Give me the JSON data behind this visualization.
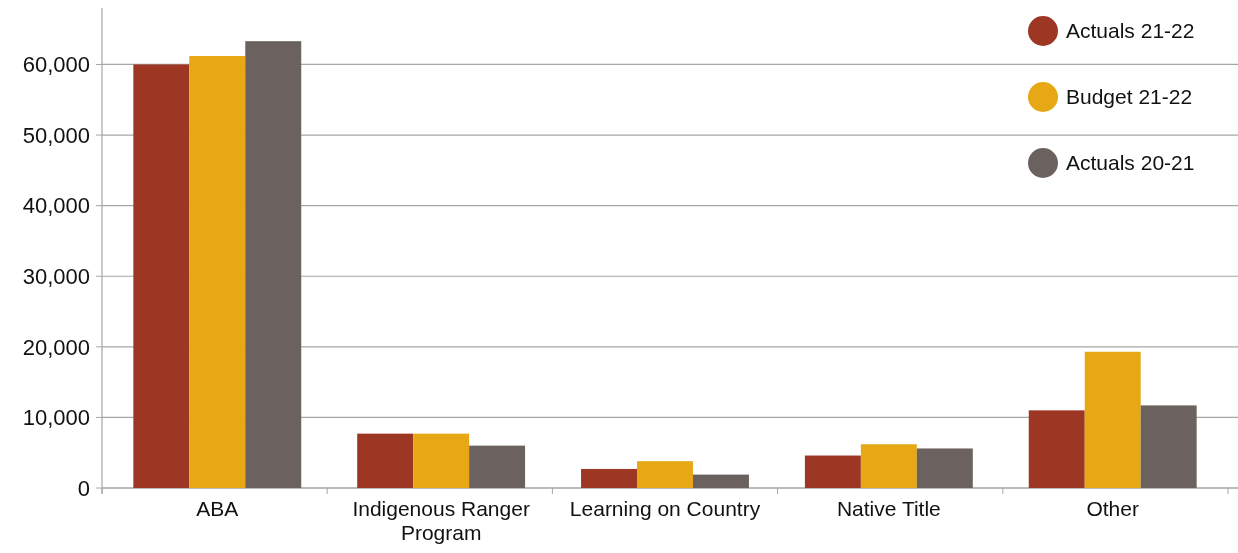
{
  "chart_data": {
    "type": "bar",
    "categories": [
      "ABA",
      "Indigenous Ranger Program",
      "Learning on Country",
      "Native Title",
      "Other"
    ],
    "series": [
      {
        "name": "Actuals 21-22",
        "color": "#9e3624",
        "values": [
          60000,
          7700,
          2700,
          4600,
          11000
        ]
      },
      {
        "name": "Budget 21-22",
        "color": "#e6a815",
        "values": [
          61200,
          7700,
          3800,
          6200,
          19300
        ]
      },
      {
        "name": "Actuals 20-21",
        "color": "#6b625f",
        "values": [
          63300,
          6000,
          1900,
          5600,
          11700
        ]
      }
    ],
    "ylim": [
      0,
      68000
    ],
    "yticks": [
      {
        "value": 0,
        "label": "0"
      },
      {
        "value": 10000,
        "label": "10,000"
      },
      {
        "value": 20000,
        "label": "20,000"
      },
      {
        "value": 30000,
        "label": "30,000"
      },
      {
        "value": 40000,
        "label": "40,000"
      },
      {
        "value": 50000,
        "label": "50,000"
      },
      {
        "value": 60000,
        "label": "60,000"
      }
    ],
    "grid": "y",
    "legend": "top right"
  }
}
